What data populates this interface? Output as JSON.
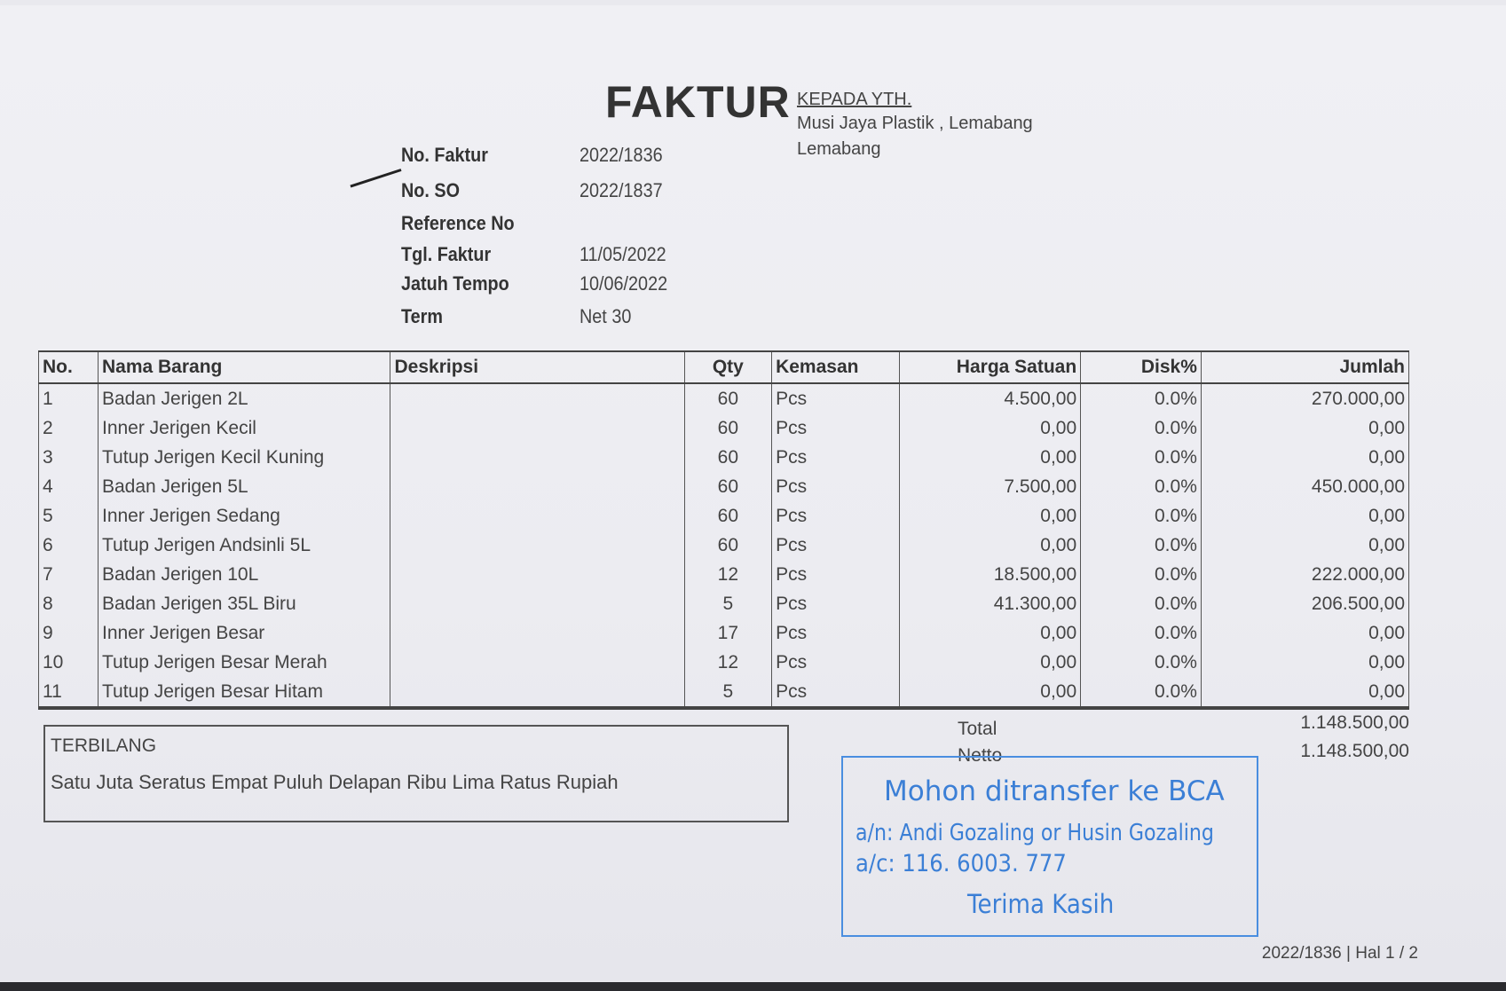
{
  "header": {
    "title": "FAKTUR",
    "recipient_label": "KEPADA YTH.",
    "recipient_name": "Musi Jaya Plastik , Lemabang",
    "recipient_city": "Lemabang"
  },
  "info": [
    {
      "label": "No. Faktur",
      "value": "2022/1836"
    },
    {
      "label": "No. SO",
      "value": "2022/1837"
    },
    {
      "label": "Reference No",
      "value": ""
    },
    {
      "label": "Tgl. Faktur",
      "value": "11/05/2022"
    },
    {
      "label": "Jatuh Tempo",
      "value": "10/06/2022"
    },
    {
      "label": "Term",
      "value": "Net 30"
    }
  ],
  "table": {
    "columns": [
      "No.",
      "Nama Barang",
      "Deskripsi",
      "Qty",
      "Kemasan",
      "Harga Satuan",
      "Disk%",
      "Jumlah"
    ],
    "rows": [
      [
        "1",
        "Badan Jerigen 2L",
        "",
        "60",
        "Pcs",
        "4.500,00",
        "0.0%",
        "270.000,00"
      ],
      [
        "2",
        "Inner Jerigen Kecil",
        "",
        "60",
        "Pcs",
        "0,00",
        "0.0%",
        "0,00"
      ],
      [
        "3",
        "Tutup Jerigen Kecil Kuning",
        "",
        "60",
        "Pcs",
        "0,00",
        "0.0%",
        "0,00"
      ],
      [
        "4",
        "Badan Jerigen 5L",
        "",
        "60",
        "Pcs",
        "7.500,00",
        "0.0%",
        "450.000,00"
      ],
      [
        "5",
        "Inner Jerigen Sedang",
        "",
        "60",
        "Pcs",
        "0,00",
        "0.0%",
        "0,00"
      ],
      [
        "6",
        "Tutup Jerigen Andsinli 5L",
        "",
        "60",
        "Pcs",
        "0,00",
        "0.0%",
        "0,00"
      ],
      [
        "7",
        "Badan Jerigen 10L",
        "",
        "12",
        "Pcs",
        "18.500,00",
        "0.0%",
        "222.000,00"
      ],
      [
        "8",
        "Badan Jerigen 35L Biru",
        "",
        "5",
        "Pcs",
        "41.300,00",
        "0.0%",
        "206.500,00"
      ],
      [
        "9",
        "Inner Jerigen Besar",
        "",
        "17",
        "Pcs",
        "0,00",
        "0.0%",
        "0,00"
      ],
      [
        "10",
        "Tutup Jerigen Besar Merah",
        "",
        "12",
        "Pcs",
        "0,00",
        "0.0%",
        "0,00"
      ],
      [
        "11",
        "Tutup Jerigen Besar Hitam",
        "",
        "5",
        "Pcs",
        "0,00",
        "0.0%",
        "0,00"
      ]
    ]
  },
  "terbilang": {
    "label": "TERBILANG",
    "text": "Satu Juta Seratus Empat Puluh Delapan Ribu Lima Ratus Rupiah"
  },
  "totals": {
    "total_label": "Total",
    "total_value": "1.148.500,00",
    "netto_label": "Netto",
    "netto_value": "1.148.500,00"
  },
  "stamp": {
    "line1": "Mohon ditransfer ke BCA",
    "line2": "a/n: Andi Gozaling or Husin Gozaling",
    "line3": "a/c: 116. 6003. 777",
    "line4": "Terima Kasih",
    "color": "#3b7fd6"
  },
  "footer": "2022/1836 | Hal 1 / 2"
}
